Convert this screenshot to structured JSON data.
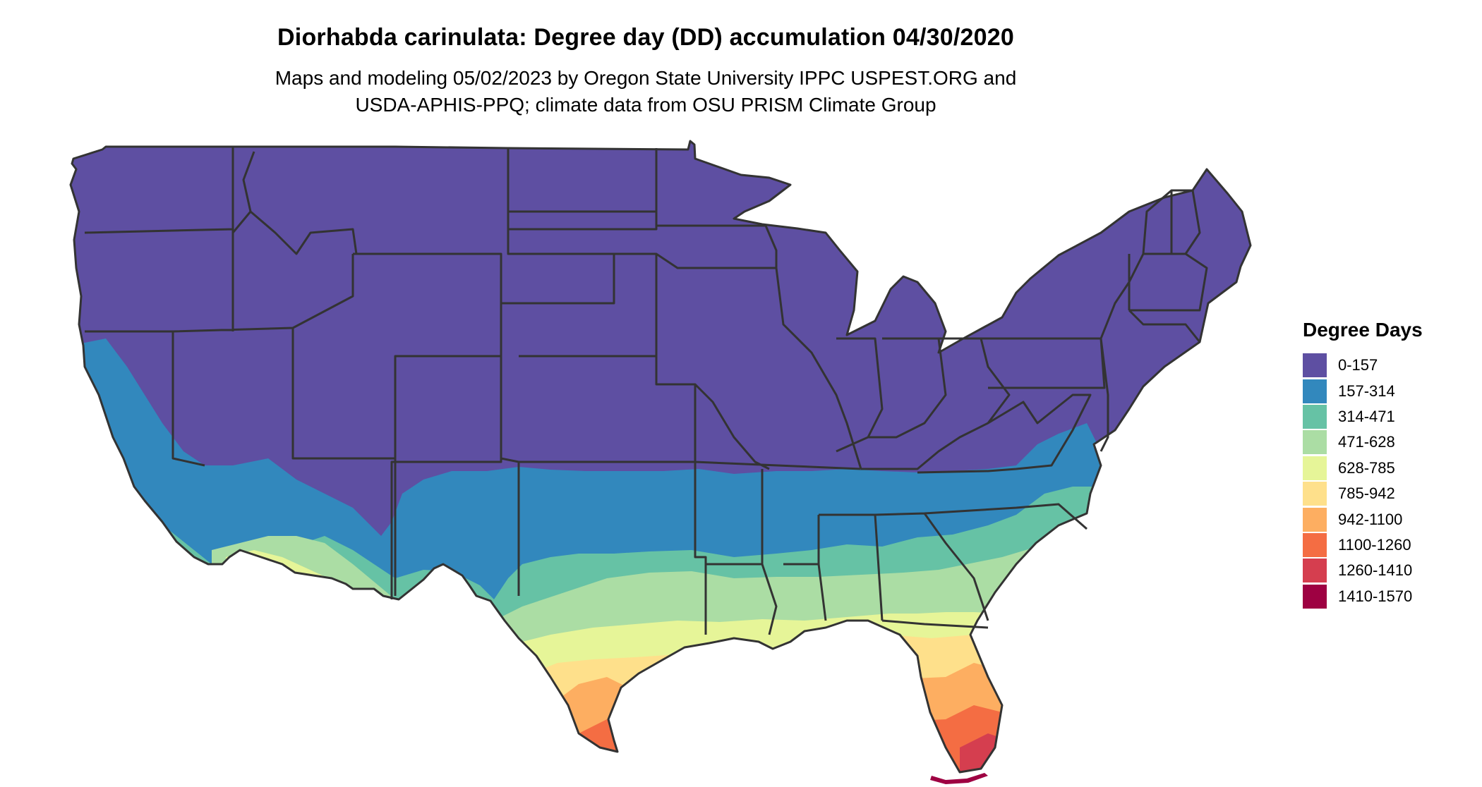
{
  "title": "Diorhabda carinulata: Degree day (DD) accumulation 04/30/2020",
  "subtitle_line1": "Maps and modeling 05/02/2023 by Oregon State University IPPC USPEST.ORG and",
  "subtitle_line2": "USDA-APHIS-PPQ; climate data from OSU PRISM Climate Group",
  "legend": {
    "title": "Degree Days",
    "items": [
      {
        "label": "0-157",
        "color": "#5e4fa2"
      },
      {
        "label": "157-314",
        "color": "#3288bd"
      },
      {
        "label": "314-471",
        "color": "#66c2a5"
      },
      {
        "label": "471-628",
        "color": "#abdda4"
      },
      {
        "label": "628-785",
        "color": "#e6f598"
      },
      {
        "label": "785-942",
        "color": "#fee08b"
      },
      {
        "label": "942-1100",
        "color": "#fdae61"
      },
      {
        "label": "1100-1260",
        "color": "#f46d43"
      },
      {
        "label": "1260-1410",
        "color": "#d53e4f"
      },
      {
        "label": "1410-1570",
        "color": "#9e0142"
      }
    ]
  },
  "map": {
    "border_color": "#333333"
  }
}
